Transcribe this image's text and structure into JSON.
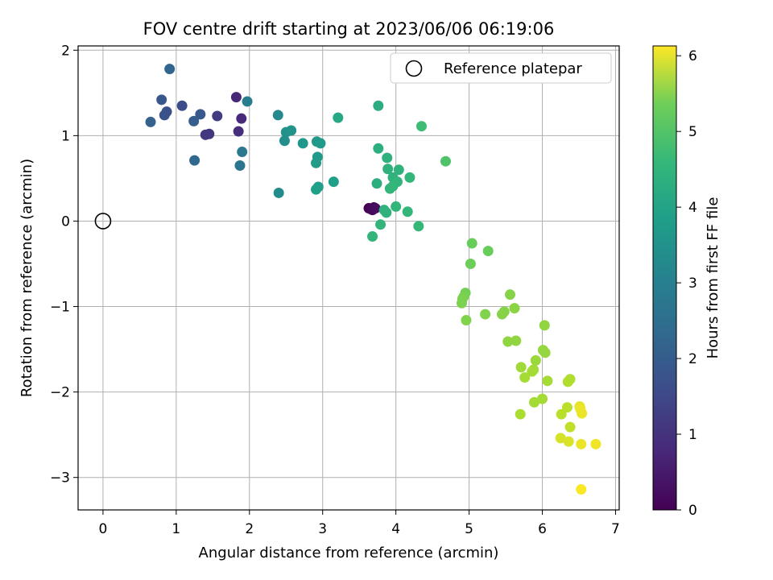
{
  "chart_data": {
    "type": "scatter",
    "title": "FOV centre drift starting at 2023/06/06 06:19:06",
    "xlabel": "Angular distance from reference (arcmin)",
    "ylabel": "Rotation from reference (arcmin)",
    "xlim": [
      -0.34,
      7.05
    ],
    "ylim": [
      -3.38,
      2.05
    ],
    "xticks": [
      0,
      1,
      2,
      3,
      4,
      5,
      6,
      7
    ],
    "xtick_labels": [
      "0",
      "1",
      "2",
      "3",
      "4",
      "5",
      "6",
      "7"
    ],
    "yticks": [
      2,
      1,
      0,
      -1,
      -2,
      -3
    ],
    "ytick_labels": [
      "2",
      "1",
      "0",
      "−1",
      "−2",
      "−3"
    ],
    "grid": true,
    "legend": {
      "position": "top-right",
      "entries": [
        "Reference platepar"
      ]
    },
    "reference_point": {
      "x": 0,
      "y": 0
    },
    "colorbar": {
      "label": "Hours from first FF file",
      "min": 0,
      "max": 6.13,
      "ticks": [
        0,
        1,
        2,
        3,
        4,
        5,
        6
      ],
      "tick_labels": [
        "0",
        "1",
        "2",
        "3",
        "4",
        "5",
        "6"
      ],
      "colormap": "viridis"
    },
    "points": [
      {
        "x": 3.63,
        "y": 0.15,
        "t": 0.0
      },
      {
        "x": 3.66,
        "y": 0.14,
        "t": 0.05
      },
      {
        "x": 3.7,
        "y": 0.16,
        "t": 0.1
      },
      {
        "x": 3.68,
        "y": 0.13,
        "t": 0.15
      },
      {
        "x": 3.72,
        "y": 0.15,
        "t": 0.2
      },
      {
        "x": 1.82,
        "y": 1.45,
        "t": 0.7
      },
      {
        "x": 1.89,
        "y": 1.2,
        "t": 0.75
      },
      {
        "x": 1.85,
        "y": 1.05,
        "t": 0.8
      },
      {
        "x": 1.45,
        "y": 1.02,
        "t": 0.95
      },
      {
        "x": 1.4,
        "y": 1.01,
        "t": 1.0
      },
      {
        "x": 1.56,
        "y": 1.23,
        "t": 1.1
      },
      {
        "x": 1.08,
        "y": 1.35,
        "t": 1.4
      },
      {
        "x": 0.87,
        "y": 1.28,
        "t": 1.5
      },
      {
        "x": 0.84,
        "y": 1.24,
        "t": 1.55
      },
      {
        "x": 0.8,
        "y": 1.42,
        "t": 1.65
      },
      {
        "x": 1.33,
        "y": 1.25,
        "t": 1.7
      },
      {
        "x": 1.24,
        "y": 1.17,
        "t": 1.8
      },
      {
        "x": 0.65,
        "y": 1.16,
        "t": 1.9
      },
      {
        "x": 0.91,
        "y": 1.78,
        "t": 2.0
      },
      {
        "x": 1.25,
        "y": 0.71,
        "t": 2.05
      },
      {
        "x": 1.87,
        "y": 0.65,
        "t": 2.4
      },
      {
        "x": 1.9,
        "y": 0.81,
        "t": 2.5
      },
      {
        "x": 1.97,
        "y": 1.4,
        "t": 2.6
      },
      {
        "x": 2.39,
        "y": 1.24,
        "t": 2.9
      },
      {
        "x": 2.4,
        "y": 0.33,
        "t": 2.95
      },
      {
        "x": 2.48,
        "y": 0.94,
        "t": 3.05
      },
      {
        "x": 2.5,
        "y": 1.04,
        "t": 3.1
      },
      {
        "x": 2.57,
        "y": 1.06,
        "t": 3.15
      },
      {
        "x": 2.73,
        "y": 0.91,
        "t": 3.2
      },
      {
        "x": 2.92,
        "y": 0.93,
        "t": 3.25
      },
      {
        "x": 2.97,
        "y": 0.91,
        "t": 3.3
      },
      {
        "x": 2.93,
        "y": 0.75,
        "t": 3.3
      },
      {
        "x": 2.91,
        "y": 0.68,
        "t": 3.35
      },
      {
        "x": 2.94,
        "y": 0.4,
        "t": 3.4
      },
      {
        "x": 2.91,
        "y": 0.37,
        "t": 3.45
      },
      {
        "x": 3.15,
        "y": 0.46,
        "t": 3.45
      },
      {
        "x": 3.21,
        "y": 1.21,
        "t": 3.65
      },
      {
        "x": 3.76,
        "y": 1.35,
        "t": 3.8
      },
      {
        "x": 3.76,
        "y": 0.85,
        "t": 3.85
      },
      {
        "x": 3.74,
        "y": 0.44,
        "t": 3.85
      },
      {
        "x": 3.88,
        "y": 0.74,
        "t": 3.9
      },
      {
        "x": 3.89,
        "y": 0.61,
        "t": 3.9
      },
      {
        "x": 3.96,
        "y": 0.51,
        "t": 3.95
      },
      {
        "x": 4.04,
        "y": 0.6,
        "t": 3.95
      },
      {
        "x": 4.02,
        "y": 0.46,
        "t": 4.0
      },
      {
        "x": 3.92,
        "y": 0.38,
        "t": 4.0
      },
      {
        "x": 3.96,
        "y": 0.41,
        "t": 4.05
      },
      {
        "x": 4.19,
        "y": 0.51,
        "t": 4.05
      },
      {
        "x": 3.84,
        "y": 0.13,
        "t": 3.95
      },
      {
        "x": 3.87,
        "y": 0.1,
        "t": 3.95
      },
      {
        "x": 4.0,
        "y": 0.17,
        "t": 4.0
      },
      {
        "x": 4.16,
        "y": 0.11,
        "t": 4.05
      },
      {
        "x": 3.79,
        "y": -0.04,
        "t": 4.0
      },
      {
        "x": 3.68,
        "y": -0.18,
        "t": 4.0
      },
      {
        "x": 4.31,
        "y": -0.06,
        "t": 4.1
      },
      {
        "x": 4.35,
        "y": 1.11,
        "t": 4.2
      },
      {
        "x": 4.68,
        "y": 0.7,
        "t": 4.4
      },
      {
        "x": 5.04,
        "y": -0.26,
        "t": 4.7
      },
      {
        "x": 5.26,
        "y": -0.35,
        "t": 4.7
      },
      {
        "x": 5.02,
        "y": -0.5,
        "t": 4.75
      },
      {
        "x": 4.95,
        "y": -0.84,
        "t": 4.8
      },
      {
        "x": 4.93,
        "y": -0.88,
        "t": 4.85
      },
      {
        "x": 4.9,
        "y": -0.96,
        "t": 4.9
      },
      {
        "x": 4.91,
        "y": -0.91,
        "t": 4.9
      },
      {
        "x": 4.96,
        "y": -1.16,
        "t": 4.95
      },
      {
        "x": 5.22,
        "y": -1.09,
        "t": 4.95
      },
      {
        "x": 5.45,
        "y": -1.09,
        "t": 5.0
      },
      {
        "x": 5.48,
        "y": -1.06,
        "t": 5.0
      },
      {
        "x": 5.56,
        "y": -0.86,
        "t": 5.0
      },
      {
        "x": 5.62,
        "y": -1.02,
        "t": 5.05
      },
      {
        "x": 5.53,
        "y": -1.41,
        "t": 5.1
      },
      {
        "x": 5.64,
        "y": -1.4,
        "t": 5.1
      },
      {
        "x": 6.03,
        "y": -1.22,
        "t": 5.1
      },
      {
        "x": 6.01,
        "y": -1.51,
        "t": 5.15
      },
      {
        "x": 6.04,
        "y": -1.54,
        "t": 5.15
      },
      {
        "x": 5.91,
        "y": -1.63,
        "t": 5.2
      },
      {
        "x": 5.71,
        "y": -1.71,
        "t": 5.25
      },
      {
        "x": 5.88,
        "y": -1.74,
        "t": 5.25
      },
      {
        "x": 5.86,
        "y": -1.76,
        "t": 5.3
      },
      {
        "x": 5.76,
        "y": -1.83,
        "t": 5.3
      },
      {
        "x": 6.07,
        "y": -1.87,
        "t": 5.3
      },
      {
        "x": 6.38,
        "y": -1.85,
        "t": 5.4
      },
      {
        "x": 6.35,
        "y": -1.88,
        "t": 5.4
      },
      {
        "x": 5.89,
        "y": -2.12,
        "t": 5.3
      },
      {
        "x": 6.0,
        "y": -2.08,
        "t": 5.3
      },
      {
        "x": 5.7,
        "y": -2.26,
        "t": 5.35
      },
      {
        "x": 6.34,
        "y": -2.18,
        "t": 5.5
      },
      {
        "x": 6.26,
        "y": -2.26,
        "t": 5.5
      },
      {
        "x": 6.38,
        "y": -2.41,
        "t": 5.55
      },
      {
        "x": 6.51,
        "y": -2.17,
        "t": 5.9
      },
      {
        "x": 6.52,
        "y": -2.2,
        "t": 5.95
      },
      {
        "x": 6.54,
        "y": -2.25,
        "t": 5.95
      },
      {
        "x": 6.25,
        "y": -2.54,
        "t": 5.75
      },
      {
        "x": 6.36,
        "y": -2.58,
        "t": 5.8
      },
      {
        "x": 6.53,
        "y": -2.61,
        "t": 5.95
      },
      {
        "x": 6.73,
        "y": -2.61,
        "t": 6.0
      },
      {
        "x": 6.53,
        "y": -3.14,
        "t": 6.1
      }
    ]
  }
}
